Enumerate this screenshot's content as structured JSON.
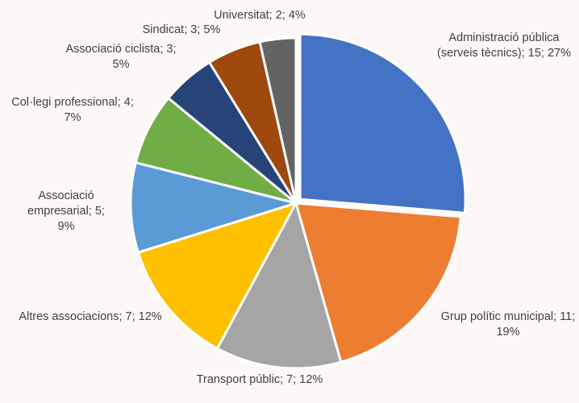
{
  "chart_data": {
    "type": "pie",
    "categories": [
      "Administració pública (serveis tècnics)",
      "Grup polític municipal",
      "Transport públic",
      "Altres associacions",
      "Associació empresarial",
      "Col·legi professional",
      "Associació ciclista",
      "Sindicat",
      "Universitat"
    ],
    "values": [
      15,
      11,
      7,
      7,
      5,
      4,
      3,
      3,
      2
    ],
    "value_labels": [
      "Administració pública (serveis tècnics); 15; 27%",
      "Grup polític municipal; 11; 19%",
      "Transport públic; 7; 12%",
      "Altres associacions; 7; 12%",
      "Associació empresarial; 5; 9%",
      "Col·legi professional; 4; 7%",
      "Associació ciclista; 3; 5%",
      "Sindicat; 3;  5%",
      "Universitat; 2; 4%"
    ],
    "colors": [
      "#4472c4",
      "#ed7d31",
      "#a5a5a5",
      "#ffc000",
      "#5b9bd5",
      "#70ad47",
      "#264478",
      "#9e480e",
      "#636363"
    ]
  }
}
